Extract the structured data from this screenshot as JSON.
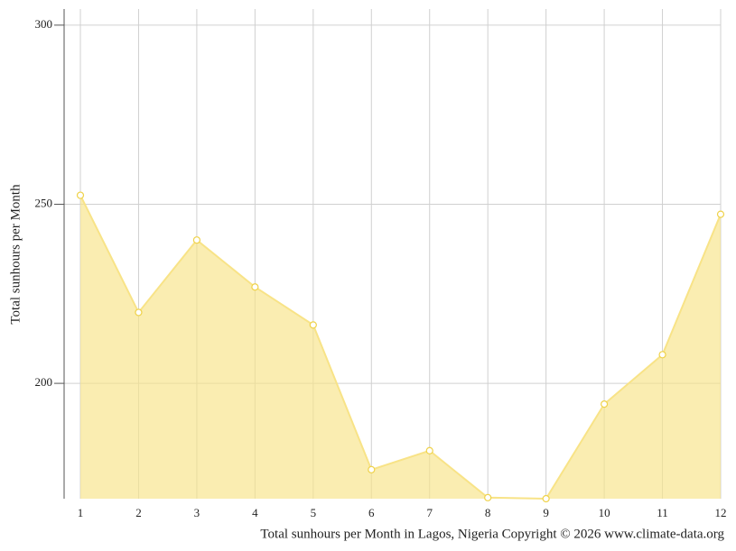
{
  "chart_data": {
    "type": "area",
    "y_label": "Total sunhours per Month",
    "caption": "Total sunhours per Month in Lagos, Nigeria Copyright © 2026 www.climate-data.org",
    "x": [
      1,
      2,
      3,
      4,
      5,
      6,
      7,
      8,
      9,
      10,
      11,
      12
    ],
    "values": [
      252.5,
      219.8,
      240,
      226.9,
      216.3,
      175.9,
      181.2,
      168.1,
      167.8,
      194.2,
      208,
      247.2
    ],
    "color": "#f8e387",
    "xlim": [
      1,
      12
    ],
    "xticks": [
      1,
      2,
      3,
      4,
      5,
      6,
      7,
      8,
      9,
      10,
      11,
      12
    ],
    "ylim": [
      167.8,
      304.5
    ],
    "yticks": [
      200,
      250,
      300
    ],
    "grid": true
  }
}
